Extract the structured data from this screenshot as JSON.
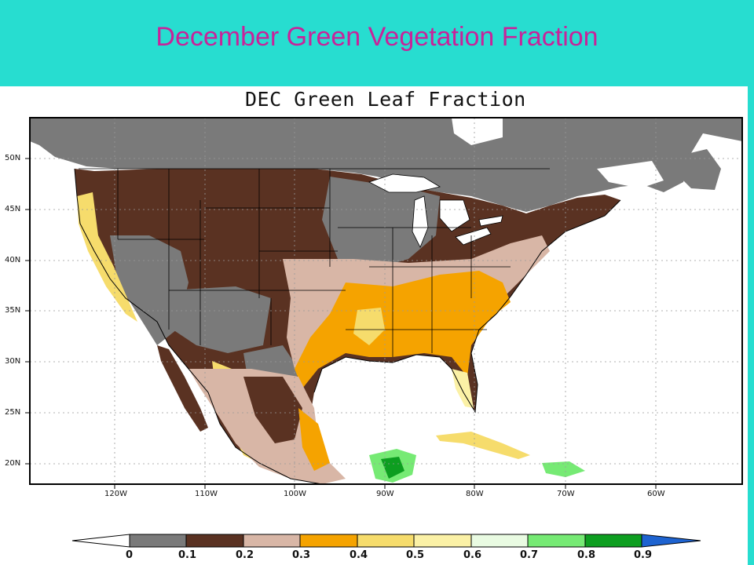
{
  "header": {
    "title": "December Green Vegetation Fraction"
  },
  "map": {
    "title": "DEC Green Leaf Fraction",
    "lat_ticks": [
      "50N",
      "45N",
      "40N",
      "35N",
      "30N",
      "25N",
      "20N"
    ],
    "lon_ticks": [
      "120W",
      "110W",
      "100W",
      "90W",
      "80W",
      "70W",
      "60W"
    ]
  },
  "colorbar": {
    "labels": [
      "0",
      "0.1",
      "0.2",
      "0.3",
      "0.4",
      "0.5",
      "0.6",
      "0.7",
      "0.8",
      "0.9"
    ],
    "colors": [
      "#ffffff",
      "#7a7a7a",
      "#5a3222",
      "#d8b6a6",
      "#f5a300",
      "#f6dc6c",
      "#fbf1a6",
      "#e9fbe2",
      "#76ea74",
      "#0d9e20",
      "#1e63d0"
    ]
  },
  "colors": {
    "header_bg": "#27ddd0",
    "title": "#c8239a",
    "water": "#ffffff",
    "frame": "#000000"
  }
}
